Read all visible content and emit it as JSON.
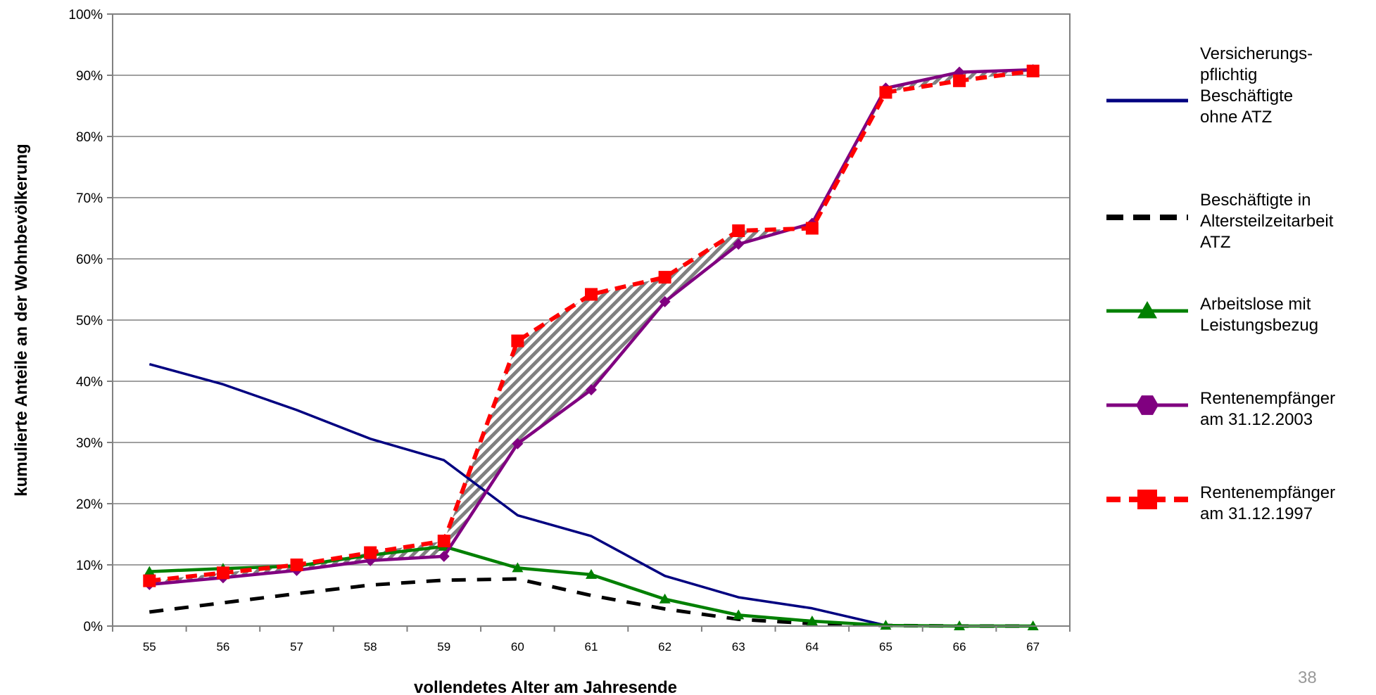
{
  "page_number": "38",
  "chart_data": {
    "type": "line",
    "title": "",
    "xlabel": "vollendetes Alter am Jahresende",
    "ylabel": "kumulierte Anteile an der Wohnbevölkerung",
    "categories": [
      "55",
      "56",
      "57",
      "58",
      "59",
      "60",
      "61",
      "62",
      "63",
      "64",
      "65",
      "66",
      "67"
    ],
    "yticks": [
      "0%",
      "10%",
      "20%",
      "30%",
      "40%",
      "50%",
      "60%",
      "70%",
      "80%",
      "90%",
      "100%"
    ],
    "ylim": [
      0,
      100
    ],
    "grid": "horizontal",
    "legend_position": "right",
    "shaded_region": {
      "between": [
        "Rentenempfänger am 31.12.1997",
        "Rentenempfänger am 31.12.2003"
      ],
      "pattern": "diagonal hatch",
      "color": "#808080"
    },
    "series": [
      {
        "legend": [
          "Versicherungs-",
          "pflichtig",
          "Beschäftigte",
          "ohne ATZ"
        ],
        "name": "Versicherungspflichtig Beschäftigte ohne ATZ",
        "color": "#000080",
        "line_style": "solid",
        "marker": "none",
        "values": [
          42.8,
          39.5,
          35.3,
          30.6,
          27.1,
          18.1,
          14.7,
          8.2,
          4.7,
          2.9,
          0.1,
          0,
          0
        ]
      },
      {
        "legend": [
          "Beschäftigte in",
          "Altersteilzeitarbeit",
          "ATZ"
        ],
        "name": "Beschäftigte in Altersteilzeitarbeit ATZ",
        "color": "#000000",
        "line_style": "dashed",
        "marker": "none",
        "values": [
          2.3,
          3.8,
          5.3,
          6.7,
          7.5,
          7.7,
          5.0,
          2.8,
          1.1,
          0.4,
          0.1,
          0,
          0
        ]
      },
      {
        "legend": [
          "Arbeitslose mit",
          "Leistungsbezug"
        ],
        "name": "Arbeitslose mit Leistungsbezug",
        "color": "#008000",
        "line_style": "solid",
        "marker": "triangle",
        "values": [
          8.9,
          9.4,
          9.8,
          11.6,
          13.0,
          9.5,
          8.4,
          4.4,
          1.8,
          0.8,
          0.1,
          0,
          0
        ]
      },
      {
        "legend": [
          "Rentenempfänger",
          "am 31.12.2003"
        ],
        "name": "Rentenempfänger am 31.12.2003",
        "color": "#800080",
        "line_style": "solid",
        "marker": "diamond",
        "values": [
          6.8,
          7.9,
          9.1,
          10.7,
          11.4,
          29.8,
          38.6,
          53.0,
          62.4,
          65.8,
          87.9,
          90.5,
          90.9
        ]
      },
      {
        "legend": [
          "Rentenempfänger",
          "am 31.12.1997"
        ],
        "name": "Rentenempfänger am 31.12.1997",
        "color": "#ff0000",
        "line_style": "dashed",
        "marker": "square",
        "values": [
          7.4,
          8.7,
          10.0,
          12.0,
          13.9,
          46.6,
          54.2,
          57.0,
          64.6,
          65.0,
          87.2,
          89.1,
          90.7
        ]
      }
    ]
  }
}
